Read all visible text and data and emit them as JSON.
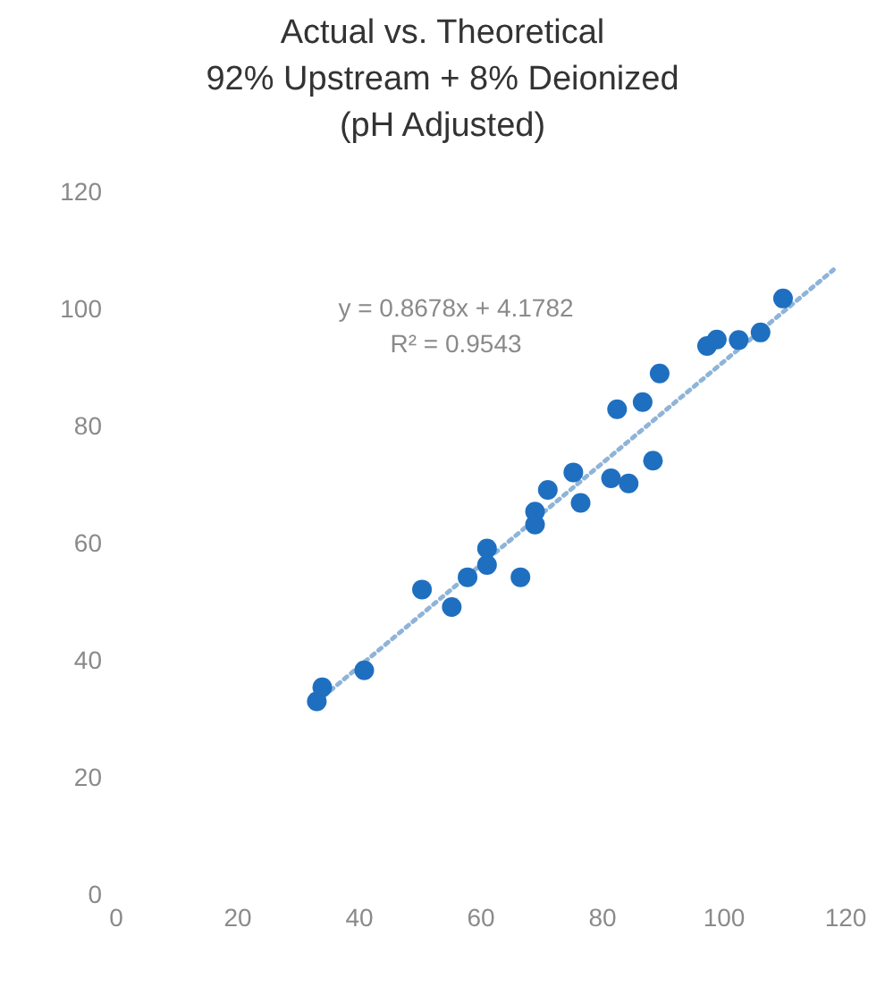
{
  "chart_data": {
    "type": "scatter",
    "title": "Actual vs. Theoretical\n92% Upstream + 8% Deionized\n(pH Adjusted)",
    "x": [
      33.0,
      33.9,
      40.8,
      50.3,
      55.2,
      57.8,
      61.0,
      61.0,
      66.5,
      68.9,
      68.9,
      71.0,
      75.2,
      76.4,
      81.4,
      84.3,
      82.4,
      86.6,
      88.3,
      89.4,
      97.2,
      98.8,
      102.4,
      106.0,
      109.7
    ],
    "series": [
      {
        "color": "#1f6fc0",
        "values": [
          32.9,
          35.3,
          38.2,
          52.0,
          49.0,
          54.1,
          56.2,
          59.0,
          54.1,
          63.1,
          65.3,
          69.0,
          72.0,
          66.8,
          71.0,
          70.1,
          82.8,
          84.0,
          74.0,
          88.9,
          93.6,
          94.7,
          94.6,
          95.9,
          101.7
        ],
        "marker": "circle"
      },
      {
        "type": "line",
        "color": "#8fb4d8",
        "x": [
          33,
          118
        ],
        "values": [
          32.8,
          106.6
        ],
        "line_style": "dotted",
        "marker": "none"
      }
    ],
    "annotations": [
      "y = 0.8678x + 4.1782\nR² = 0.9543"
    ],
    "xlim": [
      0,
      120
    ],
    "xticks": [
      0,
      20,
      40,
      60,
      80,
      100,
      120
    ],
    "ylim": [
      0,
      120
    ],
    "yticks": [
      0,
      20,
      40,
      60,
      80,
      100,
      120
    ]
  }
}
